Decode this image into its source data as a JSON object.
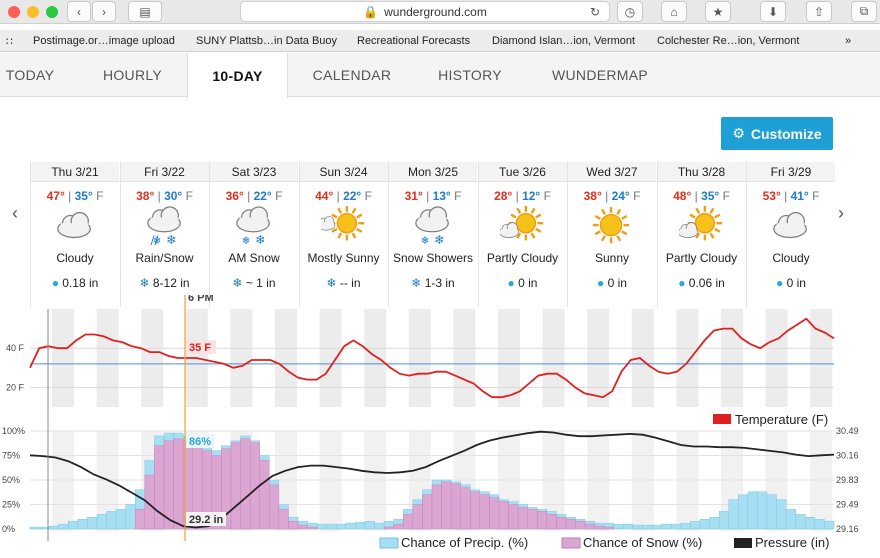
{
  "browser": {
    "url": "wunderground.com",
    "bookmarks": [
      "Postimage.or…image upload",
      "SUNY Plattsb…in Data Buoy",
      "Recreational Forecasts",
      "Diamond Islan…ion, Vermont",
      "Colchester Re…ion, Vermont"
    ]
  },
  "tabs": [
    "TODAY",
    "HOURLY",
    "10-DAY",
    "CALENDAR",
    "HISTORY",
    "WUNDERMAP"
  ],
  "active_tab": "10-DAY",
  "customize_label": "Customize",
  "days": [
    {
      "date": "Thu 3/21",
      "hi": "47°",
      "lo": "35°",
      "unit": "F",
      "icon": "cloudy-icon",
      "cond": "Cloudy",
      "precip": "0.18 in",
      "precip_icon": "rain-drop-icon"
    },
    {
      "date": "Fri 3/22",
      "hi": "38°",
      "lo": "30°",
      "unit": "F",
      "icon": "rain-snow-icon",
      "cond": "Rain/Snow",
      "precip": "8-12 in",
      "precip_icon": "snowflake-icon"
    },
    {
      "date": "Sat 3/23",
      "hi": "36°",
      "lo": "22°",
      "unit": "F",
      "icon": "snow-icon",
      "cond": "AM Snow",
      "precip": "~ 1 in",
      "precip_icon": "snowflake-icon"
    },
    {
      "date": "Sun 3/24",
      "hi": "44°",
      "lo": "22°",
      "unit": "F",
      "icon": "mostly-sunny-icon",
      "cond": "Mostly Sunny",
      "precip": "-- in",
      "precip_icon": "snowflake-icon"
    },
    {
      "date": "Mon 3/25",
      "hi": "31°",
      "lo": "13°",
      "unit": "F",
      "icon": "snow-showers-icon",
      "cond": "Snow Showers",
      "precip": "1-3 in",
      "precip_icon": "snowflake-icon"
    },
    {
      "date": "Tue 3/26",
      "hi": "28°",
      "lo": "12°",
      "unit": "F",
      "icon": "partly-cloudy-icon",
      "cond": "Partly Cloudy",
      "precip": "0 in",
      "precip_icon": "rain-drop-icon"
    },
    {
      "date": "Wed 3/27",
      "hi": "38°",
      "lo": "24°",
      "unit": "F",
      "icon": "sunny-icon",
      "cond": "Sunny",
      "precip": "0 in",
      "precip_icon": "rain-drop-icon"
    },
    {
      "date": "Thu 3/28",
      "hi": "48°",
      "lo": "35°",
      "unit": "F",
      "icon": "partly-cloudy-icon",
      "cond": "Partly Cloudy",
      "precip": "0.06 in",
      "precip_icon": "rain-drop-icon"
    },
    {
      "date": "Fri 3/29",
      "hi": "53°",
      "lo": "41°",
      "unit": "F",
      "icon": "cloudy-icon",
      "cond": "Cloudy",
      "precip": "0 in",
      "precip_icon": "rain-drop-icon"
    }
  ],
  "chart_data": [
    {
      "type": "line",
      "series": [
        {
          "name": "Temperature (F)",
          "color": "#e02020"
        }
      ],
      "ytick_labels": [
        "40 F",
        "20 F"
      ],
      "cursor_time": "6 PM",
      "cursor_value": "35 F",
      "temperature": [
        30,
        40,
        41,
        40,
        40,
        44,
        47,
        47,
        46,
        44,
        43,
        41,
        40,
        38,
        38,
        36,
        35,
        35,
        35,
        34,
        33,
        32,
        30,
        31,
        34,
        34,
        34,
        32,
        28,
        25,
        24,
        24,
        27,
        34,
        41,
        44,
        41,
        37,
        34,
        30,
        27,
        26,
        27,
        27,
        28,
        28,
        26,
        24,
        22,
        18,
        15,
        15,
        16,
        18,
        22,
        26,
        27,
        27,
        24,
        20,
        17,
        16,
        15,
        18,
        28,
        34,
        35,
        31,
        28,
        27,
        28,
        32,
        38,
        44,
        49,
        50,
        50,
        45,
        42,
        40,
        43,
        45,
        49,
        52,
        55,
        50,
        48,
        45
      ],
      "legend": "Temperature (F)"
    },
    {
      "type": "area",
      "ytick_labels": [
        "100%",
        "75%",
        "50%",
        "25%",
        "0%"
      ],
      "y2tick_labels": [
        "30.49",
        "30.16",
        "29.83",
        "29.49",
        "29.16"
      ],
      "cursor_precip": "86%",
      "cursor_pressure": "29.2 in",
      "legend": [
        "Chance of Precip. (%)",
        "Chance of Snow (%)",
        "Pressure (in)"
      ],
      "precip": [
        2,
        2,
        3,
        5,
        8,
        10,
        12,
        15,
        18,
        20,
        25,
        40,
        70,
        95,
        98,
        98,
        95,
        90,
        85,
        80,
        85,
        90,
        95,
        90,
        75,
        50,
        25,
        12,
        8,
        6,
        5,
        5,
        5,
        6,
        7,
        8,
        6,
        8,
        10,
        20,
        30,
        40,
        50,
        50,
        48,
        45,
        40,
        38,
        35,
        30,
        28,
        25,
        22,
        20,
        18,
        15,
        12,
        10,
        8,
        6,
        6,
        5,
        5,
        4,
        4,
        4,
        5,
        5,
        6,
        8,
        10,
        12,
        18,
        30,
        35,
        38,
        38,
        35,
        30,
        20,
        15,
        12,
        10,
        8
      ],
      "snow": [
        0,
        0,
        0,
        0,
        0,
        0,
        0,
        0,
        0,
        0,
        0,
        20,
        55,
        85,
        90,
        92,
        90,
        85,
        80,
        75,
        82,
        88,
        92,
        88,
        70,
        45,
        20,
        8,
        4,
        2,
        0,
        0,
        0,
        0,
        0,
        0,
        0,
        2,
        5,
        15,
        25,
        35,
        45,
        48,
        46,
        42,
        38,
        35,
        32,
        28,
        25,
        22,
        20,
        18,
        15,
        12,
        10,
        8,
        5,
        3,
        2,
        0,
        0,
        0,
        0,
        0,
        0,
        0,
        0,
        0,
        0,
        0,
        0,
        0,
        0,
        0,
        0,
        0,
        0,
        0,
        0,
        0,
        0,
        0
      ],
      "pressure": [
        30.16,
        30.15,
        30.13,
        30.08,
        30.0,
        29.9,
        29.83,
        29.75,
        29.65,
        29.55,
        29.4,
        29.28,
        29.2,
        29.18,
        29.2,
        29.3,
        29.45,
        29.6,
        29.75,
        29.88,
        29.95,
        30.0,
        30.02,
        30.02,
        30.0,
        29.98,
        29.95,
        29.93,
        29.92,
        29.93,
        29.95,
        30.0,
        30.08,
        30.15,
        30.22,
        30.3,
        30.36,
        30.4,
        30.43,
        30.46,
        30.48,
        30.47,
        30.44,
        30.42,
        30.42,
        30.43,
        30.44,
        30.45,
        30.44,
        30.4,
        30.35,
        30.3,
        30.28,
        30.28,
        30.27,
        30.27,
        30.26,
        30.24,
        30.22,
        30.2,
        30.17,
        30.15,
        30.16,
        30.17
      ]
    }
  ]
}
